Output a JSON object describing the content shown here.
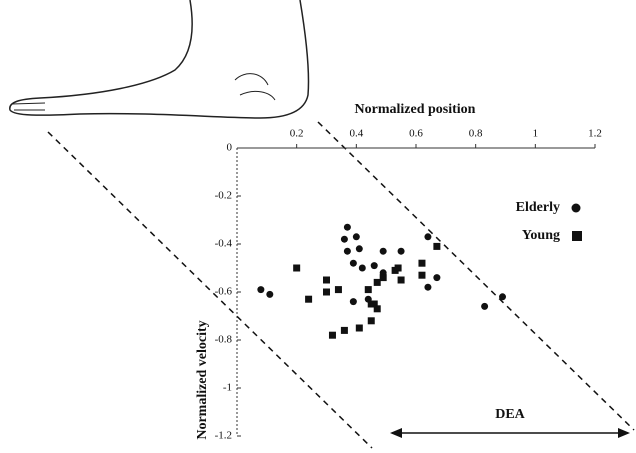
{
  "chart_data": {
    "type": "scatter",
    "x_label": "Normalized position",
    "y_label": "Normalized velocity",
    "annotation": "DEA",
    "xlim": [
      0,
      1.2
    ],
    "ylim": [
      -1.2,
      0
    ],
    "xticks": [
      0.2,
      0.4,
      0.6,
      0.8,
      1,
      1.2
    ],
    "yticks": [
      0,
      -0.2,
      -0.4,
      -0.6,
      -0.8,
      -1,
      -1.2
    ],
    "series": [
      {
        "name": "Elderly",
        "color": "#111111",
        "marker": "circle",
        "x": [
          0.37,
          0.4,
          0.36,
          0.37,
          0.41,
          0.39,
          0.42,
          0.46,
          0.49,
          0.55,
          0.64,
          0.67,
          0.64,
          0.08,
          0.11,
          0.39,
          0.44,
          0.83,
          0.89,
          0.49
        ],
        "values": [
          -0.33,
          -0.37,
          -0.38,
          -0.43,
          -0.42,
          -0.48,
          -0.5,
          -0.49,
          -0.43,
          -0.43,
          -0.37,
          -0.54,
          -0.58,
          -0.59,
          -0.61,
          -0.64,
          -0.63,
          -0.66,
          -0.62,
          -0.52
        ]
      },
      {
        "name": "Young",
        "color": "#111111",
        "marker": "square",
        "x": [
          0.2,
          0.24,
          0.3,
          0.3,
          0.34,
          0.32,
          0.36,
          0.41,
          0.44,
          0.45,
          0.46,
          0.45,
          0.47,
          0.47,
          0.49,
          0.53,
          0.55,
          0.62,
          0.62,
          0.67,
          0.54
        ],
        "values": [
          -0.5,
          -0.63,
          -0.55,
          -0.6,
          -0.59,
          -0.78,
          -0.76,
          -0.75,
          -0.59,
          -0.65,
          -0.65,
          -0.72,
          -0.67,
          -0.56,
          -0.54,
          -0.51,
          -0.55,
          -0.48,
          -0.53,
          -0.41,
          -0.5
        ]
      }
    ]
  }
}
